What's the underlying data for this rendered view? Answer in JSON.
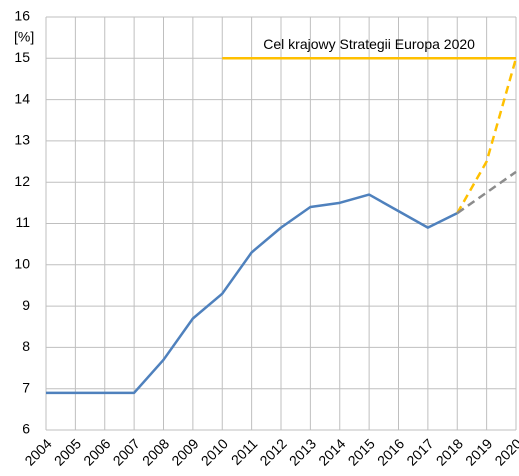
{
  "chart_data": {
    "type": "line",
    "y_label": "[%]",
    "categories": [
      "2004",
      "2005",
      "2006",
      "2007",
      "2008",
      "2009",
      "2010",
      "2011",
      "2012",
      "2013",
      "2014",
      "2015",
      "2016",
      "2017",
      "2018",
      "2019",
      "2020"
    ],
    "series": [
      {
        "color": "#4f81bd",
        "line_style": "solid",
        "values": [
          6.9,
          6.9,
          6.9,
          6.9,
          7.7,
          8.7,
          9.3,
          10.3,
          10.9,
          11.4,
          11.5,
          11.7,
          11.3,
          10.9,
          11.25,
          null,
          null
        ]
      },
      {
        "name": "Cel krajowy Strategii Europa 2020",
        "color": "#ffc000",
        "line_style": "solid",
        "values": [
          null,
          null,
          null,
          null,
          null,
          null,
          15,
          15,
          15,
          15,
          15,
          15,
          15,
          15,
          15,
          15,
          15
        ]
      },
      {
        "color": "#ffc000",
        "line_style": "dashed",
        "values": [
          null,
          null,
          null,
          null,
          null,
          null,
          null,
          null,
          null,
          null,
          null,
          null,
          null,
          null,
          11.25,
          12.5,
          15
        ]
      },
      {
        "color": "#8c8c8c",
        "line_style": "dashed",
        "values": [
          null,
          null,
          null,
          null,
          null,
          null,
          null,
          null,
          null,
          null,
          null,
          null,
          null,
          null,
          11.25,
          11.75,
          12.25
        ]
      }
    ],
    "ylim": [
      6,
      16
    ],
    "yticks": [
      6,
      7,
      8,
      9,
      10,
      11,
      12,
      13,
      14,
      15,
      16
    ],
    "grid": true
  }
}
